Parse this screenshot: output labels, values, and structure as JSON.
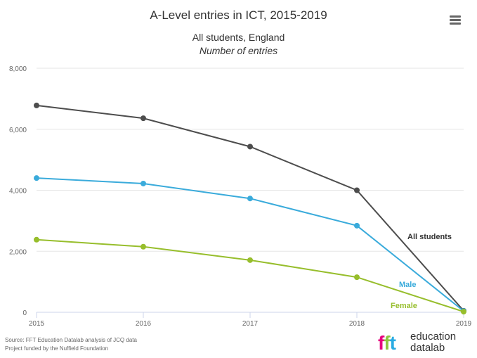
{
  "chart_data": {
    "type": "line",
    "title": "A-Level entries in ICT, 2015-2019",
    "subtitle_line1": "All students, England",
    "subtitle_line2": "Number of entries",
    "x": [
      2015,
      2016,
      2017,
      2018,
      2019
    ],
    "x_tick_labels": [
      "2015",
      "2016",
      "2017",
      "2018",
      "2019"
    ],
    "ylim": [
      0,
      8000
    ],
    "y_ticks": [
      0,
      2000,
      4000,
      6000,
      8000
    ],
    "y_tick_labels": [
      "0",
      "2,000",
      "4,000",
      "6,000",
      "8,000"
    ],
    "grid": true,
    "series": [
      {
        "name": "All students",
        "values": [
          6780,
          6360,
          5430,
          4000,
          50
        ],
        "color": "#4d4d4d"
      },
      {
        "name": "Male",
        "values": [
          4400,
          4220,
          3730,
          2840,
          40
        ],
        "color": "#3aabdb"
      },
      {
        "name": "Female",
        "values": [
          2380,
          2150,
          1710,
          1150,
          20
        ],
        "color": "#97be2c"
      }
    ]
  },
  "footer": {
    "source_line1": "Source: FFT Education Datalab analysis of JCQ data",
    "source_line2": "Project funded by the Nuffield Foundation"
  },
  "logo": {
    "mark_f1": "f",
    "mark_f2": "f",
    "mark_t": "t",
    "word1": "education",
    "word2": "datalab"
  },
  "icons": {
    "menu": "hamburger-menu-icon"
  }
}
